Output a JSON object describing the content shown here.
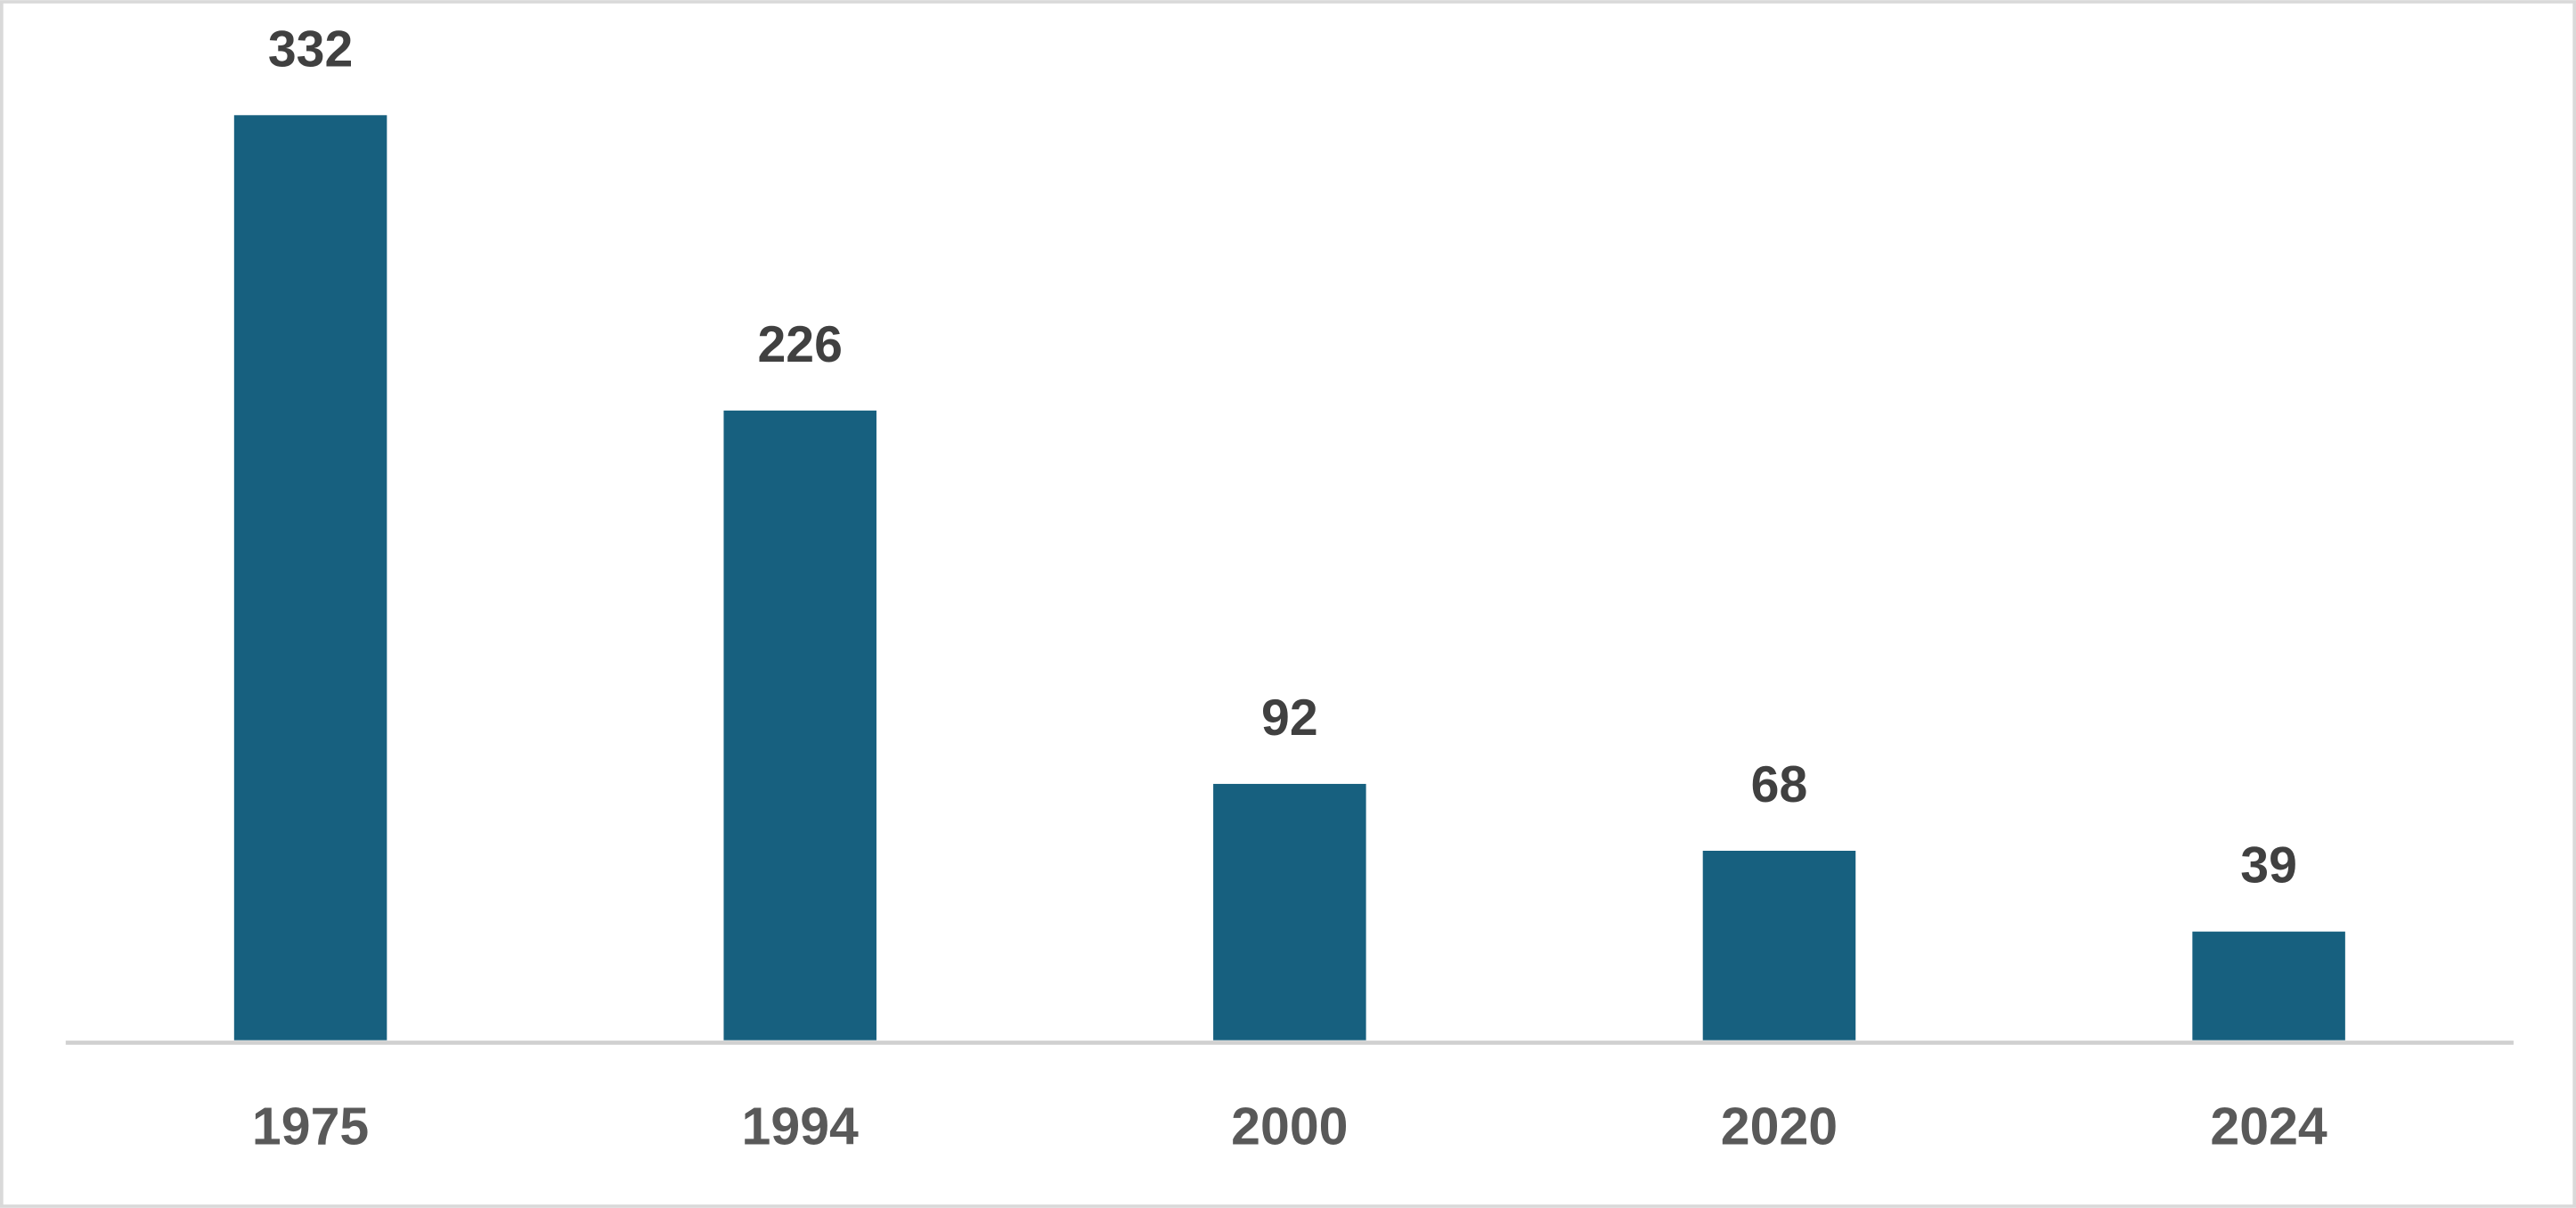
{
  "chart_data": {
    "type": "bar",
    "categories": [
      "1975",
      "1994",
      "2000",
      "2020",
      "2024"
    ],
    "values": [
      332,
      226,
      92,
      68,
      39
    ],
    "color": "#17607f"
  }
}
